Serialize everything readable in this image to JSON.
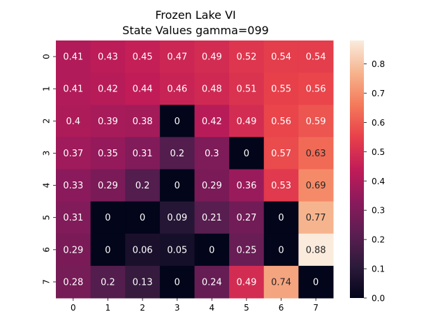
{
  "chart_data": {
    "type": "heatmap",
    "title": "Frozen Lake VI",
    "subtitle": "State Values gamma=099",
    "xlabel": "",
    "ylabel": "",
    "x_ticks": [
      "0",
      "1",
      "2",
      "3",
      "4",
      "5",
      "6",
      "7"
    ],
    "y_ticks": [
      "0",
      "1",
      "2",
      "3",
      "4",
      "5",
      "6",
      "7"
    ],
    "values": [
      [
        0.41,
        0.43,
        0.45,
        0.47,
        0.49,
        0.52,
        0.54,
        0.54
      ],
      [
        0.41,
        0.42,
        0.44,
        0.46,
        0.48,
        0.51,
        0.55,
        0.56
      ],
      [
        0.4,
        0.39,
        0.38,
        0,
        0.42,
        0.49,
        0.56,
        0.59
      ],
      [
        0.37,
        0.35,
        0.31,
        0.2,
        0.3,
        0,
        0.57,
        0.63
      ],
      [
        0.33,
        0.29,
        0.2,
        0,
        0.29,
        0.36,
        0.53,
        0.69
      ],
      [
        0.31,
        0,
        0,
        0.09,
        0.21,
        0.27,
        0,
        0.77
      ],
      [
        0.29,
        0,
        0.06,
        0.05,
        0,
        0.25,
        0,
        0.88
      ],
      [
        0.28,
        0.2,
        0.13,
        0,
        0.24,
        0.49,
        0.74,
        0
      ]
    ],
    "colorbar": {
      "vmin": 0,
      "vmax": 0.88,
      "ticks": [
        "0.0",
        "0.1",
        "0.2",
        "0.3",
        "0.4",
        "0.5",
        "0.6",
        "0.7",
        "0.8"
      ],
      "colormap": "rocket",
      "colormap_stops": [
        "#03051a",
        "#2d1a3b",
        "#5c1e52",
        "#8b1a5c",
        "#c11c58",
        "#e8404a",
        "#f47a5a",
        "#f6b48e",
        "#faebdd"
      ]
    }
  }
}
